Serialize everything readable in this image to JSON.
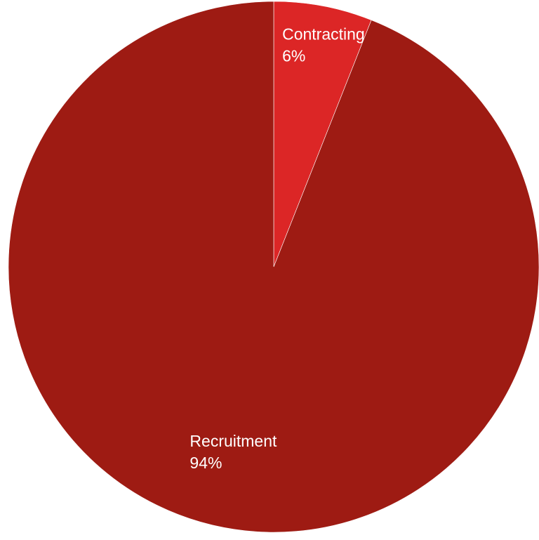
{
  "chart_data": {
    "type": "pie",
    "title": "",
    "start_angle": "12 o'clock",
    "direction": "clockwise",
    "slices": [
      {
        "label": "Contracting",
        "value": 6,
        "value_label": "6%",
        "color": "#dc2626",
        "label_color": "#ffffff"
      },
      {
        "label": "Recruitment",
        "value": 94,
        "value_label": "94%",
        "color": "#9e1b13",
        "label_color": "#ffffff"
      }
    ]
  }
}
